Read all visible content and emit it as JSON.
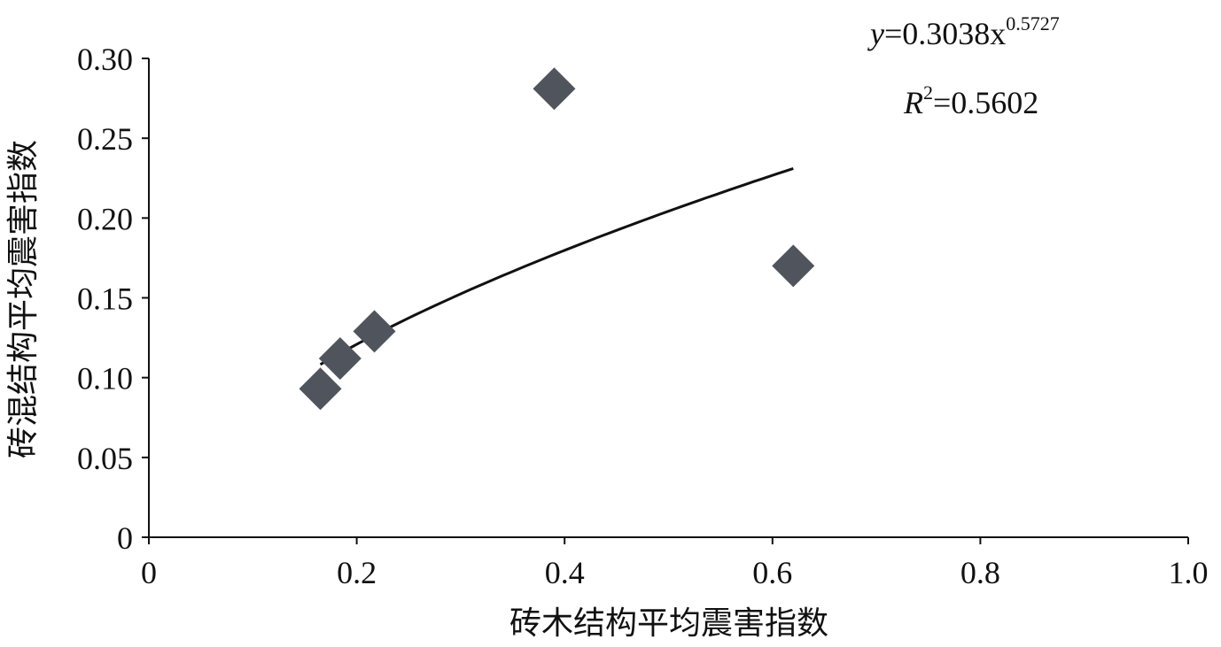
{
  "chart_data": {
    "type": "scatter",
    "xlabel": "砖木结构平均震害指数",
    "ylabel": "砖混结构平均震害指数",
    "xlim": [
      0,
      1.0
    ],
    "ylim": [
      0,
      0.3
    ],
    "x_ticks": [
      "0",
      "0.2",
      "0.4",
      "0.6",
      "0.8",
      "1.0"
    ],
    "y_ticks": [
      "0",
      "0.05",
      "0.10",
      "0.15",
      "0.20",
      "0.25",
      "0.30"
    ],
    "points": [
      {
        "x": 0.165,
        "y": 0.093
      },
      {
        "x": 0.184,
        "y": 0.112
      },
      {
        "x": 0.217,
        "y": 0.129
      },
      {
        "x": 0.39,
        "y": 0.281
      },
      {
        "x": 0.62,
        "y": 0.17
      }
    ],
    "trendline": {
      "type": "power",
      "coefficient": 0.3038,
      "exponent": 0.5727,
      "x_range": [
        0.165,
        0.62
      ],
      "equation_prefix": "y",
      "equation_coef": "=0.3038x",
      "equation_exp": "0.5727",
      "r2_prefix": "R",
      "r2_sup": "2",
      "r2_value": "=0.5602"
    },
    "marker_color": "#50545c",
    "line_color": "#111111",
    "grid": false,
    "legend": "none"
  }
}
